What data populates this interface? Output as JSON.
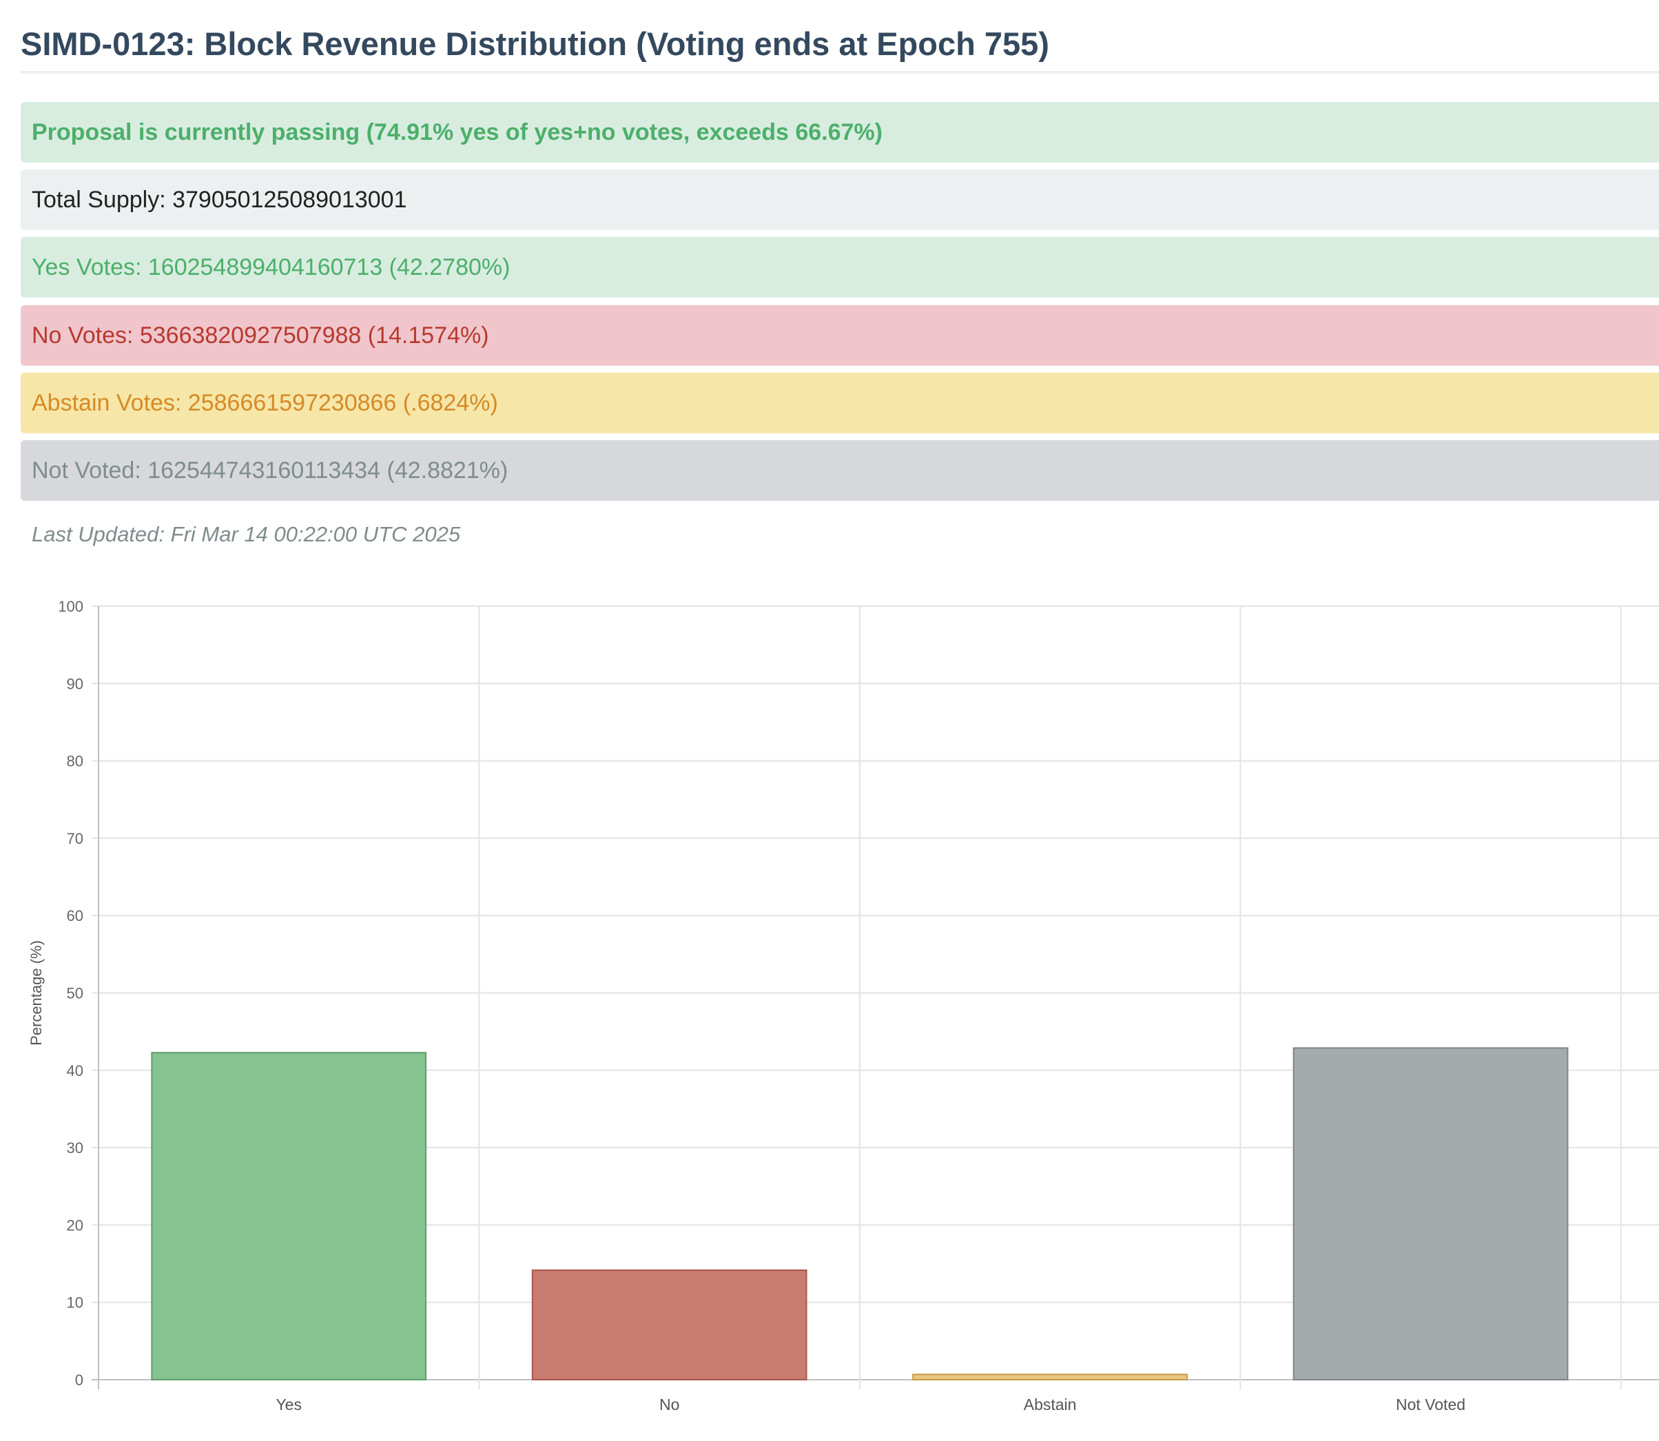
{
  "header": {
    "title": "SIMD-0123: Block Revenue Distribution (Voting ends at Epoch 755)"
  },
  "status": {
    "passing": "Proposal is currently passing (74.91% yes of yes+no votes, exceeds 66.67%)",
    "total_supply": "Total Supply: 379050125089013001",
    "yes_votes": "Yes Votes: 160254899404160713 (42.2780%)",
    "no_votes": "No Votes: 53663820927507988 (14.1574%)",
    "abstain_votes": "Abstain Votes: 2586661597230866 (.6824%)",
    "not_voted": "Not Voted: 162544743160113434 (42.8821%)",
    "last_updated": "Last Updated: Fri Mar 14 00:22:00 UTC 2025"
  },
  "colors": {
    "title": "#34495e",
    "yes": "#4caf6a",
    "no": "#b8392f",
    "abstain": "#d68a26",
    "not_voted": "#7f8c8d"
  },
  "chart_data": {
    "type": "bar",
    "title": "",
    "xlabel": "",
    "ylabel": "Percentage (%)",
    "ylim": [
      0,
      100
    ],
    "yticks": [
      "0",
      "10",
      "20",
      "30",
      "40",
      "50",
      "60",
      "70",
      "80",
      "90",
      "100"
    ],
    "grid": true,
    "categories": [
      "Yes",
      "No",
      "Abstain",
      "Not Voted"
    ],
    "values": [
      42.278,
      14.1574,
      0.6824,
      42.8821
    ],
    "bar_fill": [
      "#85c390",
      "#c97b6f",
      "#e9c77e",
      "#a5abad"
    ],
    "bar_stroke": [
      "#5d9e6a",
      "#a8574d",
      "#c89a46",
      "#7e8588"
    ]
  }
}
